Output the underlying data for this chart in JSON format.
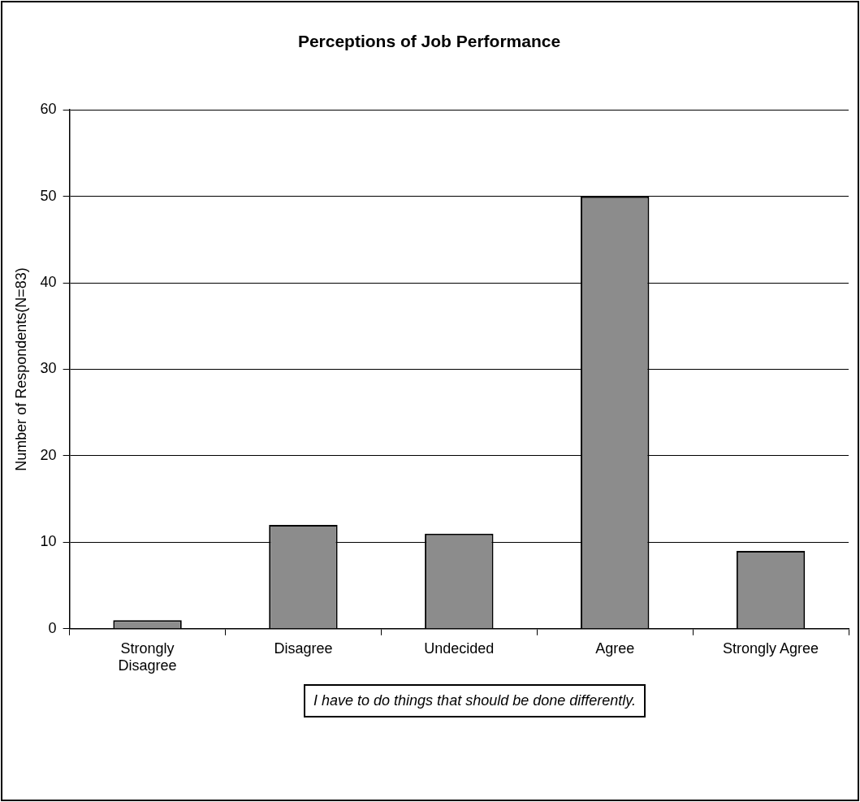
{
  "chart_data": {
    "type": "bar",
    "title": "Perceptions of Job Performance",
    "ylabel": "Number of Respondents(N=83)",
    "categories": [
      "Strongly Disagree",
      "Disagree",
      "Undecided",
      "Agree",
      "Strongly Agree"
    ],
    "values": [
      1,
      12,
      11,
      50,
      9
    ],
    "color": "#8c8c8c",
    "ylim": [
      0,
      60
    ],
    "yticks": [
      0,
      10,
      20,
      30,
      40,
      50,
      60
    ],
    "grid": "y",
    "annotations": [
      "I have to do things that should be done differently."
    ]
  }
}
